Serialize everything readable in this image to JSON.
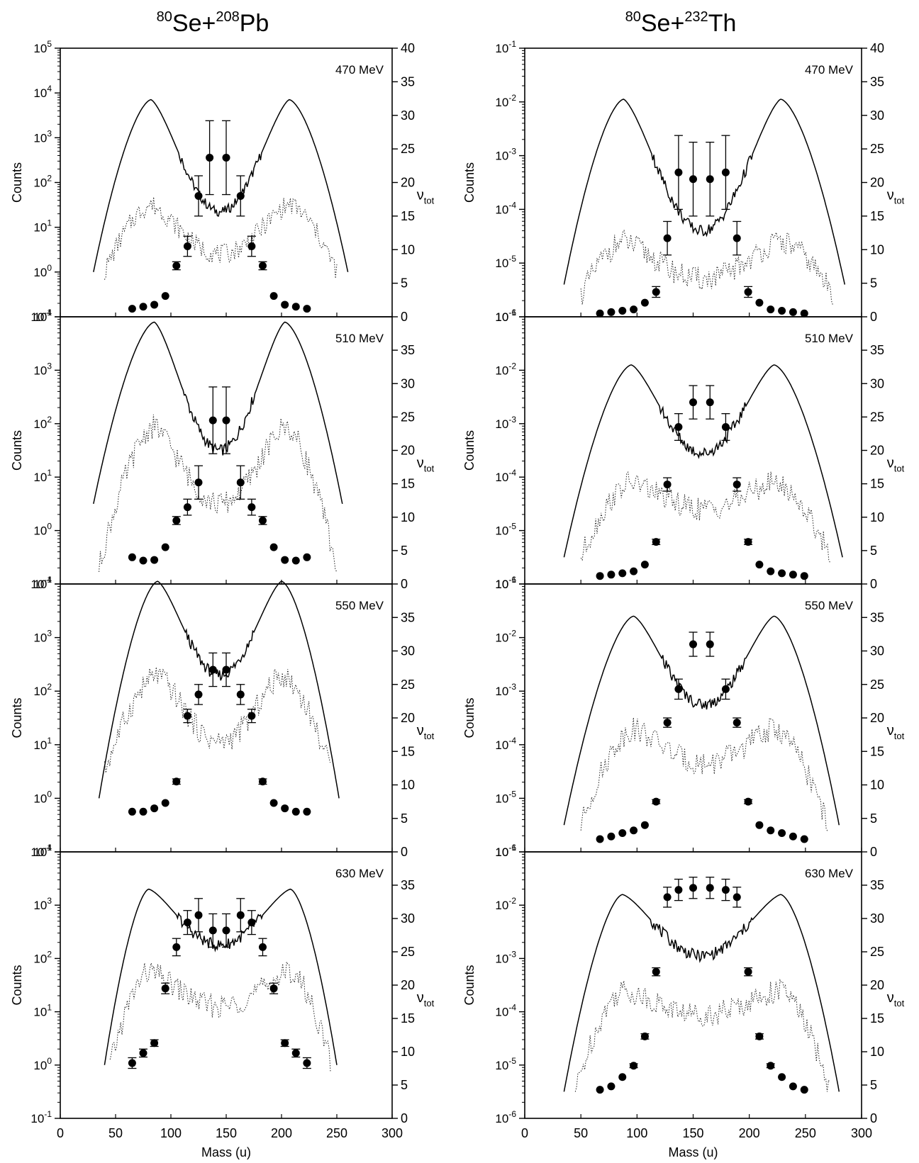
{
  "columns": [
    {
      "title_parts": [
        "80",
        "Se+",
        "208",
        "Pb"
      ],
      "left_axis": {
        "label": "Counts",
        "log_min": -1,
        "log_max": 5
      },
      "right_axis": {
        "label_main": "ν",
        "label_sub": "tot",
        "min": 0,
        "max": 40
      },
      "x_axis": {
        "label": "Mass (u)",
        "min": 0,
        "max": 300,
        "ticks": [
          "0",
          "50",
          "100",
          "150",
          "200",
          "250",
          "300"
        ]
      }
    },
    {
      "title_parts": [
        "80",
        "Se+",
        "232",
        "Th"
      ],
      "left_axis": {
        "label": "Counts",
        "log_min": -6,
        "log_max": -1
      },
      "right_axis": {
        "label_main": "ν",
        "label_sub": "tot",
        "min": 0,
        "max": 40
      },
      "x_axis": {
        "label": "Mass (u)",
        "min": 0,
        "max": 300,
        "ticks": [
          "0",
          "50",
          "100",
          "150",
          "200",
          "250",
          "300"
        ]
      }
    }
  ],
  "chart_data": [
    {
      "type": "line",
      "title": "80Se+208Pb — 470 MeV",
      "energy_label": "470 MeV",
      "col": 0,
      "row": 0,
      "y_log_range": [
        -1,
        5
      ],
      "nu_range": [
        0,
        40
      ],
      "nu_ticks": [
        0,
        5,
        10,
        15,
        20,
        25,
        30,
        35,
        40
      ],
      "solid_peak_log": 3.85,
      "solid_valley_log": 1.35,
      "solid_base_log": 0,
      "solid_span": [
        30,
        260
      ],
      "solid_peaks_at": [
        82,
        207
      ],
      "dotted_peak_log": 1.5,
      "dotted_valley_log": 0.4,
      "dotted_base_log": 0,
      "dotted_span": [
        40,
        250
      ],
      "nu_points": [
        {
          "x": 65,
          "y": 1.2,
          "e": 0
        },
        {
          "x": 75,
          "y": 1.5,
          "e": 0
        },
        {
          "x": 85,
          "y": 1.8,
          "e": 0
        },
        {
          "x": 95,
          "y": 3.1,
          "e": 0
        },
        {
          "x": 105,
          "y": 7.6,
          "e": 0.6
        },
        {
          "x": 115,
          "y": 10.5,
          "e": 1.5
        },
        {
          "x": 125,
          "y": 18,
          "e": 3
        },
        {
          "x": 135,
          "y": 23.7,
          "e": 5.5
        },
        {
          "x": 150,
          "y": 23.7,
          "e": 5.5
        },
        {
          "x": 163,
          "y": 18,
          "e": 3
        },
        {
          "x": 173,
          "y": 10.5,
          "e": 1.5
        },
        {
          "x": 183,
          "y": 7.6,
          "e": 0.6
        },
        {
          "x": 193,
          "y": 3.1,
          "e": 0
        },
        {
          "x": 203,
          "y": 1.8,
          "e": 0
        },
        {
          "x": 213,
          "y": 1.5,
          "e": 0
        },
        {
          "x": 223,
          "y": 1.2,
          "e": 0
        }
      ]
    },
    {
      "type": "line",
      "title": "80Se+208Pb — 510 MeV",
      "energy_label": "510 MeV",
      "col": 0,
      "row": 1,
      "y_log_range": [
        -1,
        4
      ],
      "nu_range": [
        0,
        40
      ],
      "nu_ticks": [
        0,
        5,
        10,
        15,
        20,
        25,
        30,
        35
      ],
      "solid_peak_log": 3.9,
      "solid_valley_log": 1.5,
      "solid_base_log": 0.5,
      "solid_span": [
        30,
        255
      ],
      "solid_peaks_at": [
        85,
        203
      ],
      "dotted_peak_log": 1.95,
      "dotted_valley_log": 0.5,
      "dotted_base_log": -0.7,
      "dotted_span": [
        35,
        250
      ],
      "nu_points": [
        {
          "x": 65,
          "y": 4,
          "e": 0
        },
        {
          "x": 75,
          "y": 3.5,
          "e": 0
        },
        {
          "x": 85,
          "y": 3.6,
          "e": 0
        },
        {
          "x": 95,
          "y": 5.5,
          "e": 0
        },
        {
          "x": 105,
          "y": 9.5,
          "e": 0.6
        },
        {
          "x": 115,
          "y": 11.5,
          "e": 1.2
        },
        {
          "x": 125,
          "y": 15.2,
          "e": 2.5
        },
        {
          "x": 138,
          "y": 24.5,
          "e": 5
        },
        {
          "x": 150,
          "y": 24.5,
          "e": 5
        },
        {
          "x": 163,
          "y": 15.2,
          "e": 2.5
        },
        {
          "x": 173,
          "y": 11.5,
          "e": 1.2
        },
        {
          "x": 183,
          "y": 9.5,
          "e": 0.6
        },
        {
          "x": 193,
          "y": 5.5,
          "e": 0
        },
        {
          "x": 203,
          "y": 3.6,
          "e": 0
        },
        {
          "x": 213,
          "y": 3.5,
          "e": 0
        },
        {
          "x": 223,
          "y": 4,
          "e": 0
        }
      ]
    },
    {
      "type": "line",
      "title": "80Se+208Pb — 550 MeV",
      "energy_label": "550 MeV",
      "col": 0,
      "row": 2,
      "y_log_range": [
        -1,
        4
      ],
      "nu_range": [
        0,
        40
      ],
      "nu_ticks": [
        0,
        5,
        10,
        15,
        20,
        25,
        30,
        35
      ],
      "solid_peak_log": 4.05,
      "solid_valley_log": 2.3,
      "solid_base_log": 0,
      "solid_span": [
        35,
        252
      ],
      "solid_peaks_at": [
        88,
        200
      ],
      "dotted_peak_log": 2.3,
      "dotted_valley_log": 1.05,
      "dotted_base_log": 0.5,
      "dotted_span": [
        40,
        245
      ],
      "nu_points": [
        {
          "x": 65,
          "y": 6,
          "e": 0
        },
        {
          "x": 75,
          "y": 6,
          "e": 0
        },
        {
          "x": 85,
          "y": 6.5,
          "e": 0
        },
        {
          "x": 95,
          "y": 7.3,
          "e": 0
        },
        {
          "x": 105,
          "y": 10.5,
          "e": 0.4
        },
        {
          "x": 115,
          "y": 20.3,
          "e": 1
        },
        {
          "x": 125,
          "y": 23.5,
          "e": 1.5
        },
        {
          "x": 138,
          "y": 27.2,
          "e": 2.5
        },
        {
          "x": 150,
          "y": 27.2,
          "e": 2.5
        },
        {
          "x": 163,
          "y": 23.5,
          "e": 1.5
        },
        {
          "x": 173,
          "y": 20.3,
          "e": 1
        },
        {
          "x": 183,
          "y": 10.5,
          "e": 0.4
        },
        {
          "x": 193,
          "y": 7.3,
          "e": 0
        },
        {
          "x": 203,
          "y": 6.5,
          "e": 0
        },
        {
          "x": 213,
          "y": 6,
          "e": 0
        },
        {
          "x": 223,
          "y": 6,
          "e": 0
        }
      ]
    },
    {
      "type": "line",
      "title": "80Se+208Pb — 630 MeV",
      "energy_label": "630 MeV",
      "col": 0,
      "row": 3,
      "y_log_range": [
        -1,
        4
      ],
      "nu_range": [
        0,
        40
      ],
      "nu_ticks": [
        0,
        5,
        10,
        15,
        20,
        25,
        30,
        35
      ],
      "solid_peak_log": 3.3,
      "solid_valley_log": 2.25,
      "solid_base_log": 0,
      "solid_span": [
        40,
        250
      ],
      "solid_peaks_at": [
        80,
        208
      ],
      "dotted_peak_log": 1.75,
      "dotted_valley_log": 1.1,
      "dotted_base_log": 0,
      "dotted_span": [
        45,
        245
      ],
      "nu_points": [
        {
          "x": 65,
          "y": 8.3,
          "e": 0.8
        },
        {
          "x": 75,
          "y": 9.8,
          "e": 0.6
        },
        {
          "x": 85,
          "y": 11.3,
          "e": 0.5
        },
        {
          "x": 95,
          "y": 19.5,
          "e": 0.8
        },
        {
          "x": 105,
          "y": 25.7,
          "e": 1.3
        },
        {
          "x": 115,
          "y": 29.4,
          "e": 1.8
        },
        {
          "x": 125,
          "y": 30.5,
          "e": 2.5
        },
        {
          "x": 138,
          "y": 28.2,
          "e": 2.5
        },
        {
          "x": 150,
          "y": 28.2,
          "e": 2.5
        },
        {
          "x": 163,
          "y": 30.5,
          "e": 2.5
        },
        {
          "x": 173,
          "y": 29.4,
          "e": 1.8
        },
        {
          "x": 183,
          "y": 25.7,
          "e": 1.3
        },
        {
          "x": 193,
          "y": 19.5,
          "e": 0.8
        },
        {
          "x": 203,
          "y": 11.3,
          "e": 0.5
        },
        {
          "x": 213,
          "y": 9.8,
          "e": 0.6
        },
        {
          "x": 223,
          "y": 8.3,
          "e": 0.8
        }
      ]
    },
    {
      "type": "line",
      "title": "80Se+232Th — 470 MeV",
      "energy_label": "470 MeV",
      "col": 1,
      "row": 0,
      "y_log_range": [
        -6,
        -1
      ],
      "nu_range": [
        0,
        40
      ],
      "nu_ticks": [
        0,
        5,
        10,
        15,
        20,
        25,
        30,
        35,
        40
      ],
      "solid_peak_log": -1.95,
      "solid_valley_log": -4.4,
      "solid_base_log": -5.4,
      "solid_span": [
        35,
        285
      ],
      "solid_peaks_at": [
        88,
        228
      ],
      "dotted_peak_log": -4.6,
      "dotted_valley_log": -5.3,
      "dotted_base_log": -5.6,
      "dotted_span": [
        50,
        275
      ],
      "nu_points": [
        {
          "x": 67,
          "y": 0.5,
          "e": 0
        },
        {
          "x": 77,
          "y": 0.7,
          "e": 0
        },
        {
          "x": 87,
          "y": 0.9,
          "e": 0
        },
        {
          "x": 97,
          "y": 1.1,
          "e": 0
        },
        {
          "x": 107,
          "y": 2.1,
          "e": 0
        },
        {
          "x": 117,
          "y": 3.7,
          "e": 0.8
        },
        {
          "x": 127,
          "y": 11.7,
          "e": 2.5
        },
        {
          "x": 137,
          "y": 21.5,
          "e": 5.5
        },
        {
          "x": 150,
          "y": 20.5,
          "e": 5.5
        },
        {
          "x": 165,
          "y": 20.5,
          "e": 5.5
        },
        {
          "x": 179,
          "y": 21.5,
          "e": 5.5
        },
        {
          "x": 189,
          "y": 11.7,
          "e": 2.5
        },
        {
          "x": 199,
          "y": 3.7,
          "e": 0.8
        },
        {
          "x": 209,
          "y": 2.1,
          "e": 0
        },
        {
          "x": 219,
          "y": 1.1,
          "e": 0
        },
        {
          "x": 229,
          "y": 0.9,
          "e": 0
        },
        {
          "x": 239,
          "y": 0.7,
          "e": 0
        },
        {
          "x": 249,
          "y": 0.5,
          "e": 0
        }
      ]
    },
    {
      "type": "line",
      "title": "80Se+232Th — 510 MeV",
      "energy_label": "510 MeV",
      "col": 1,
      "row": 1,
      "y_log_range": [
        -6,
        -1
      ],
      "nu_range": [
        0,
        40
      ],
      "nu_ticks": [
        0,
        5,
        10,
        15,
        20,
        25,
        30,
        35
      ],
      "solid_peak_log": -1.9,
      "solid_valley_log": -3.55,
      "solid_base_log": -5.5,
      "solid_span": [
        35,
        283
      ],
      "solid_peaks_at": [
        95,
        222
      ],
      "dotted_peak_log": -4.1,
      "dotted_valley_log": -4.6,
      "dotted_base_log": -5.5,
      "dotted_span": [
        50,
        273
      ],
      "nu_points": [
        {
          "x": 67,
          "y": 1.2,
          "e": 0
        },
        {
          "x": 77,
          "y": 1.4,
          "e": 0
        },
        {
          "x": 87,
          "y": 1.6,
          "e": 0
        },
        {
          "x": 97,
          "y": 1.9,
          "e": 0
        },
        {
          "x": 107,
          "y": 2.9,
          "e": 0
        },
        {
          "x": 117,
          "y": 6.3,
          "e": 0.4
        },
        {
          "x": 127,
          "y": 14.9,
          "e": 1
        },
        {
          "x": 137,
          "y": 23.5,
          "e": 2
        },
        {
          "x": 150,
          "y": 27.2,
          "e": 2.5
        },
        {
          "x": 165,
          "y": 27.2,
          "e": 2.5
        },
        {
          "x": 179,
          "y": 23.5,
          "e": 2
        },
        {
          "x": 189,
          "y": 14.9,
          "e": 1
        },
        {
          "x": 199,
          "y": 6.3,
          "e": 0.4
        },
        {
          "x": 209,
          "y": 2.9,
          "e": 0
        },
        {
          "x": 219,
          "y": 1.9,
          "e": 0
        },
        {
          "x": 229,
          "y": 1.6,
          "e": 0
        },
        {
          "x": 239,
          "y": 1.4,
          "e": 0
        },
        {
          "x": 249,
          "y": 1.2,
          "e": 0
        }
      ]
    },
    {
      "type": "line",
      "title": "80Se+232Th — 550 MeV",
      "energy_label": "550 MeV",
      "col": 1,
      "row": 2,
      "y_log_range": [
        -6,
        -1
      ],
      "nu_range": [
        0,
        40
      ],
      "nu_ticks": [
        0,
        5,
        10,
        15,
        20,
        25,
        30,
        35
      ],
      "solid_peak_log": -1.6,
      "solid_valley_log": -3.25,
      "solid_base_log": -5.5,
      "solid_span": [
        35,
        280
      ],
      "solid_peaks_at": [
        97,
        222
      ],
      "dotted_peak_log": -3.7,
      "dotted_valley_log": -4.35,
      "dotted_base_log": -5.5,
      "dotted_span": [
        50,
        270
      ],
      "nu_points": [
        {
          "x": 67,
          "y": 1.9,
          "e": 0
        },
        {
          "x": 77,
          "y": 2.3,
          "e": 0
        },
        {
          "x": 87,
          "y": 2.8,
          "e": 0
        },
        {
          "x": 97,
          "y": 3.2,
          "e": 0
        },
        {
          "x": 107,
          "y": 4,
          "e": 0
        },
        {
          "x": 117,
          "y": 7.5,
          "e": 0.3
        },
        {
          "x": 127,
          "y": 19.3,
          "e": 0.7
        },
        {
          "x": 137,
          "y": 24.3,
          "e": 1.5
        },
        {
          "x": 150,
          "y": 31,
          "e": 1.8
        },
        {
          "x": 165,
          "y": 31,
          "e": 1.8
        },
        {
          "x": 179,
          "y": 24.3,
          "e": 1.5
        },
        {
          "x": 189,
          "y": 19.3,
          "e": 0.7
        },
        {
          "x": 199,
          "y": 7.5,
          "e": 0.3
        },
        {
          "x": 209,
          "y": 4,
          "e": 0
        },
        {
          "x": 219,
          "y": 3.2,
          "e": 0
        },
        {
          "x": 229,
          "y": 2.8,
          "e": 0
        },
        {
          "x": 239,
          "y": 2.3,
          "e": 0
        },
        {
          "x": 249,
          "y": 1.9,
          "e": 0
        }
      ]
    },
    {
      "type": "line",
      "title": "80Se+232Th — 630 MeV",
      "energy_label": "630 MeV",
      "col": 1,
      "row": 3,
      "y_log_range": [
        -6,
        -1
      ],
      "nu_range": [
        0,
        40
      ],
      "nu_ticks": [
        0,
        5,
        10,
        15,
        20,
        25,
        30,
        35
      ],
      "solid_peak_log": -1.8,
      "solid_valley_log": -2.95,
      "solid_base_log": -5.5,
      "solid_span": [
        35,
        280
      ],
      "solid_peaks_at": [
        87,
        228
      ],
      "dotted_peak_log": -3.6,
      "dotted_valley_log": -4.05,
      "dotted_base_log": -5.5,
      "dotted_span": [
        45,
        272
      ],
      "nu_points": [
        {
          "x": 67,
          "y": 4.3,
          "e": 0
        },
        {
          "x": 77,
          "y": 4.8,
          "e": 0
        },
        {
          "x": 87,
          "y": 6.2,
          "e": 0
        },
        {
          "x": 97,
          "y": 7.9,
          "e": 0.3
        },
        {
          "x": 107,
          "y": 12.3,
          "e": 0.4
        },
        {
          "x": 117,
          "y": 22,
          "e": 0.6
        },
        {
          "x": 127,
          "y": 33.2,
          "e": 1.5
        },
        {
          "x": 137,
          "y": 34.3,
          "e": 1.6
        },
        {
          "x": 150,
          "y": 34.6,
          "e": 1.6
        },
        {
          "x": 165,
          "y": 34.6,
          "e": 1.6
        },
        {
          "x": 179,
          "y": 34.3,
          "e": 1.6
        },
        {
          "x": 189,
          "y": 33.2,
          "e": 1.5
        },
        {
          "x": 199,
          "y": 22,
          "e": 0.6
        },
        {
          "x": 209,
          "y": 12.3,
          "e": 0.4
        },
        {
          "x": 219,
          "y": 7.9,
          "e": 0.3
        },
        {
          "x": 229,
          "y": 6.2,
          "e": 0
        },
        {
          "x": 239,
          "y": 4.8,
          "e": 0
        },
        {
          "x": 249,
          "y": 4.3,
          "e": 0
        }
      ]
    }
  ]
}
